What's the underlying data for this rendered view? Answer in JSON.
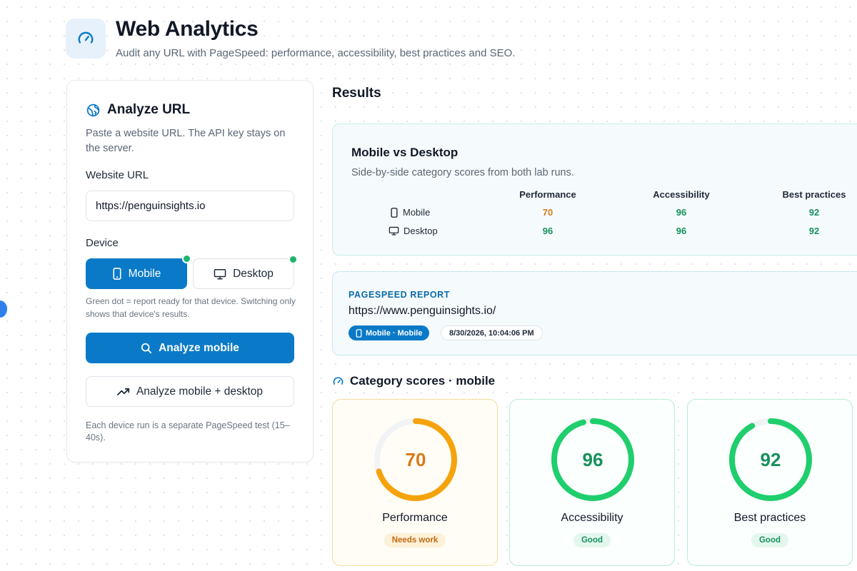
{
  "header": {
    "title": "Web Analytics",
    "subtitle": "Audit any URL with PageSpeed: performance, accessibility, best practices and SEO.",
    "icon": "gauge-icon"
  },
  "analyze_panel": {
    "title": "Analyze URL",
    "description": "Paste a website URL. The API key stays on the server.",
    "url_label": "Website URL",
    "url_value": "https://penguinsights.io",
    "device_label": "Device",
    "devices": [
      {
        "label": "Mobile",
        "selected": true,
        "ready": true,
        "icon": "phone-icon"
      },
      {
        "label": "Desktop",
        "selected": false,
        "ready": true,
        "icon": "monitor-icon"
      }
    ],
    "device_hint": "Green dot = report ready for that device. Switching only shows that device's results.",
    "analyze_button": "Analyze mobile",
    "analyze_both_button": "Analyze mobile + desktop",
    "note": "Each device run is a separate PageSpeed test (15–40s)."
  },
  "results": {
    "heading": "Results",
    "comparison": {
      "title": "Mobile vs Desktop",
      "subtitle": "Side-by-side category scores from both lab runs.",
      "columns": [
        "Performance",
        "Accessibility",
        "Best practices"
      ],
      "rows": [
        {
          "label": "Mobile",
          "icon": "phone-icon",
          "values": [
            "70",
            "96",
            "92"
          ]
        },
        {
          "label": "Desktop",
          "icon": "monitor-icon",
          "values": [
            "96",
            "96",
            "92"
          ]
        }
      ]
    },
    "report": {
      "kicker": "PAGESPEED REPORT",
      "url": "https://www.penguinsights.io/",
      "device_badge": "Mobile · Mobile",
      "timestamp": "8/30/2026, 10:04:06 PM"
    },
    "category_heading": "Category scores · mobile",
    "scores": [
      {
        "label": "Performance",
        "score": 70,
        "status": "Needs work",
        "tone": "warn"
      },
      {
        "label": "Accessibility",
        "score": 96,
        "status": "Good",
        "tone": "good"
      },
      {
        "label": "Best practices",
        "score": 92,
        "status": "Good",
        "tone": "good"
      }
    ]
  },
  "colors": {
    "primary": "#0a7ac8",
    "good": "#1fce6c",
    "good_text": "#17915c",
    "warn": "#f5a30c",
    "warn_text": "#d97a17",
    "ready_dot": "#1cb56f"
  }
}
